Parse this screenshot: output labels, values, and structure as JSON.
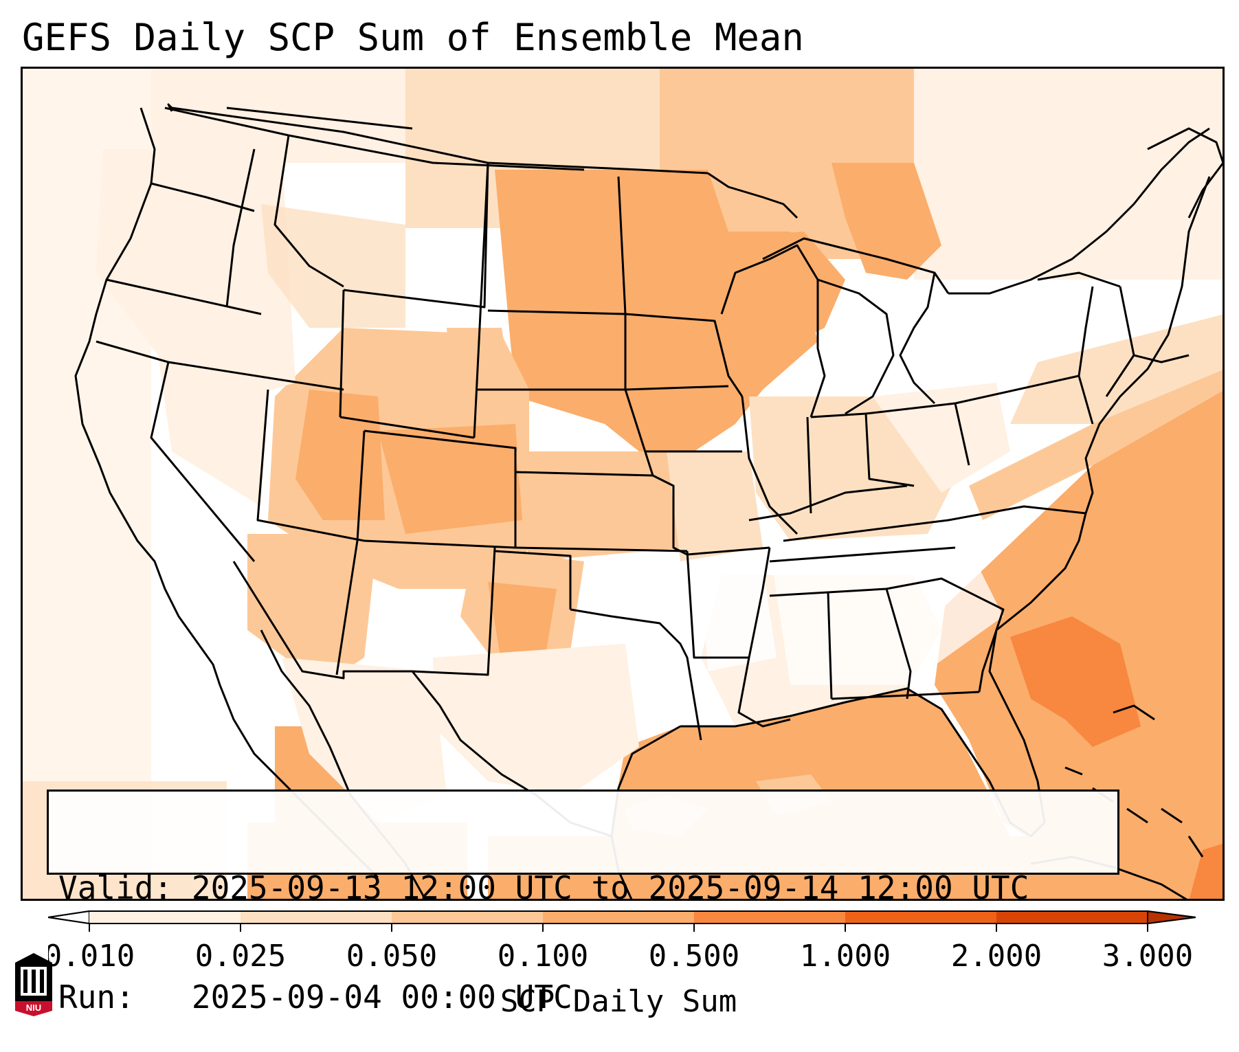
{
  "title": "GEFS Daily SCP Sum of Ensemble Mean",
  "valid": {
    "label": "Valid:",
    "text": "2025-09-13 12:00 UTC to 2025-09-14 12:00 UTC"
  },
  "run": {
    "label": "Run:",
    "text": "2025-09-04 00:00 UTC"
  },
  "colorbar": {
    "label": "SCP Daily Sum",
    "ticks": [
      "0.010",
      "0.025",
      "0.050",
      "0.100",
      "0.500",
      "1.000",
      "2.000",
      "3.000"
    ],
    "colors": [
      "#fff1e3",
      "#fde0c2",
      "#fdc897",
      "#fbad6b",
      "#f8873f",
      "#ee6218",
      "#d84406"
    ],
    "under_color": "#ffffff",
    "over_color": "#b83300",
    "extend": "both"
  },
  "logo": {
    "text": "NIU",
    "colors": [
      "#c8102e",
      "#000000",
      "#ffffff"
    ]
  },
  "map_colors": {
    "level_0": "#ffffff",
    "level_1": "#fff1e3",
    "level_2": "#fde0c2",
    "level_3": "#fdc897",
    "level_4": "#fbad6b",
    "level_5": "#f8873f",
    "outline": "#000000"
  }
}
